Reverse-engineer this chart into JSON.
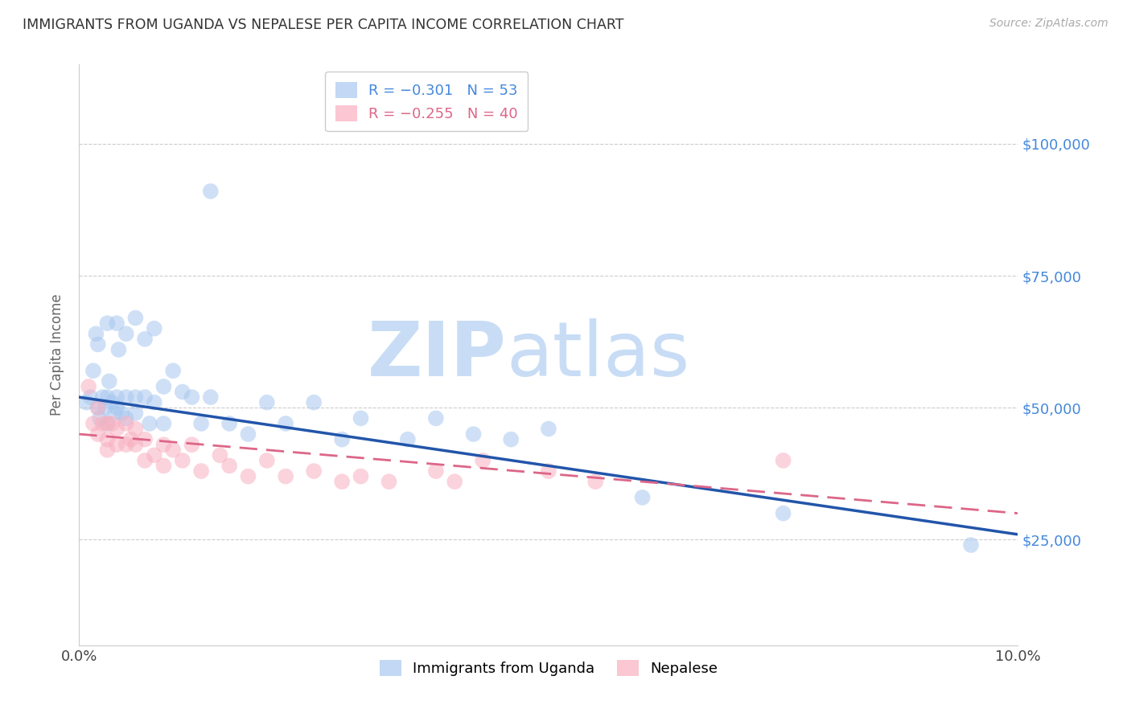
{
  "title": "IMMIGRANTS FROM UGANDA VS NEPALESE PER CAPITA INCOME CORRELATION CHART",
  "source": "Source: ZipAtlas.com",
  "ylabel": "Per Capita Income",
  "xlim": [
    0.0,
    0.1
  ],
  "ylim": [
    5000,
    115000
  ],
  "yticks": [
    25000,
    50000,
    75000,
    100000
  ],
  "ytick_labels": [
    "$25,000",
    "$50,000",
    "$75,000",
    "$100,000"
  ],
  "xticks": [
    0.0,
    0.02,
    0.04,
    0.06,
    0.08,
    0.1
  ],
  "xtick_labels": [
    "0.0%",
    "",
    "",
    "",
    "",
    "10.0%"
  ],
  "legend_label1": "Immigrants from Uganda",
  "legend_label2": "Nepalese",
  "blue_color": "#a8c8f0",
  "pink_color": "#f8b0c0",
  "line_blue": "#2255aa",
  "line_pink": "#dd6688",
  "axis_color": "#4488dd",
  "uganda_x": [
    0.0008,
    0.0012,
    0.0015,
    0.0018,
    0.002,
    0.002,
    0.0022,
    0.0025,
    0.0028,
    0.003,
    0.003,
    0.003,
    0.0032,
    0.0035,
    0.0038,
    0.004,
    0.004,
    0.004,
    0.0042,
    0.0045,
    0.005,
    0.005,
    0.005,
    0.006,
    0.006,
    0.006,
    0.007,
    0.007,
    0.0075,
    0.008,
    0.008,
    0.009,
    0.009,
    0.01,
    0.011,
    0.012,
    0.013,
    0.014,
    0.016,
    0.018,
    0.02,
    0.022,
    0.025,
    0.028,
    0.03,
    0.035,
    0.038,
    0.042,
    0.046,
    0.05,
    0.06,
    0.075,
    0.095
  ],
  "uganda_y": [
    51000,
    52000,
    57000,
    64000,
    62000,
    50000,
    48000,
    52000,
    50000,
    66000,
    52000,
    47000,
    55000,
    51000,
    49000,
    66000,
    52000,
    50000,
    61000,
    49000,
    64000,
    52000,
    48000,
    67000,
    52000,
    49000,
    63000,
    52000,
    47000,
    65000,
    51000,
    54000,
    47000,
    57000,
    53000,
    52000,
    47000,
    52000,
    47000,
    45000,
    51000,
    47000,
    51000,
    44000,
    48000,
    44000,
    48000,
    45000,
    44000,
    46000,
    33000,
    30000,
    24000
  ],
  "nepal_x": [
    0.001,
    0.0015,
    0.002,
    0.002,
    0.0025,
    0.003,
    0.003,
    0.003,
    0.0035,
    0.004,
    0.004,
    0.005,
    0.005,
    0.0055,
    0.006,
    0.006,
    0.007,
    0.007,
    0.008,
    0.009,
    0.009,
    0.01,
    0.011,
    0.012,
    0.013,
    0.015,
    0.016,
    0.018,
    0.02,
    0.022,
    0.025,
    0.028,
    0.03,
    0.033,
    0.038,
    0.04,
    0.043,
    0.05,
    0.055,
    0.075
  ],
  "nepal_y": [
    54000,
    47000,
    50000,
    45000,
    47000,
    47000,
    44000,
    42000,
    47000,
    46000,
    43000,
    47000,
    43000,
    44000,
    46000,
    43000,
    44000,
    40000,
    41000,
    43000,
    39000,
    42000,
    40000,
    43000,
    38000,
    41000,
    39000,
    37000,
    40000,
    37000,
    38000,
    36000,
    37000,
    36000,
    38000,
    36000,
    40000,
    38000,
    36000,
    40000
  ],
  "uganda_outlier_x": [
    0.014
  ],
  "uganda_outlier_y": [
    91000
  ],
  "blue_trendline_x": [
    0.0,
    0.1
  ],
  "blue_trendline_y": [
    52000,
    26000
  ],
  "pink_trendline_x": [
    0.0,
    0.1
  ],
  "pink_trendline_y": [
    45000,
    30000
  ]
}
